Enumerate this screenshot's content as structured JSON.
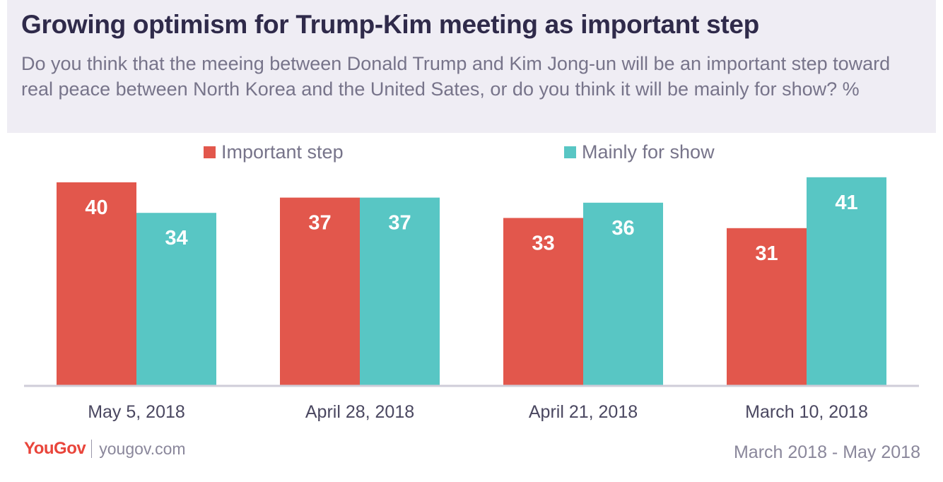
{
  "header": {
    "title": "Growing optimism for Trump-Kim meeting as important step",
    "subtitle": "Do you think that the meeing between Donald Trump and Kim Jong-un will be an important step toward real peace between North Korea and the United Sates, or do you think it will be mainly for show? %"
  },
  "chart_data": {
    "type": "bar",
    "categories": [
      "May 5, 2018",
      "April 28, 2018",
      "April 21, 2018",
      "March 10, 2018"
    ],
    "series": [
      {
        "name": "Important step",
        "values": [
          40,
          37,
          33,
          31
        ],
        "color": "#e2574c"
      },
      {
        "name": "Mainly for show",
        "values": [
          34,
          37,
          36,
          41
        ],
        "color": "#58c6c4"
      }
    ],
    "ylim": [
      0,
      41
    ],
    "grid": false,
    "legend": "top"
  },
  "footer": {
    "logo": "YouGov",
    "site": "yougov.com",
    "date_range": "March 2018 - May 2018"
  }
}
